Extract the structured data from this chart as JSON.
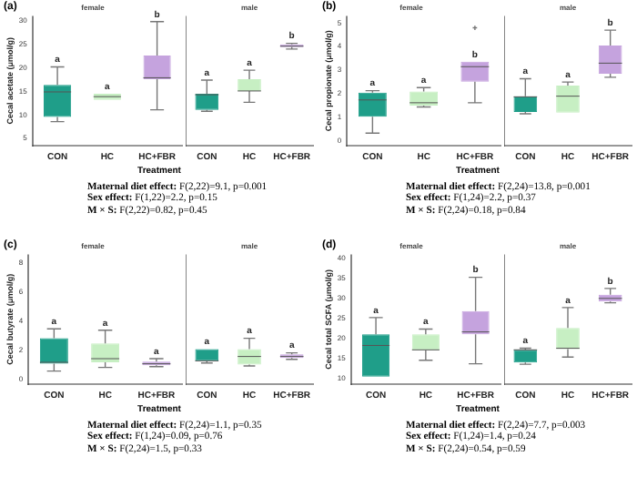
{
  "chart_data": [
    {
      "type": "box",
      "title": "female",
      "ylabel": "Cecal acetate (μmol/g)",
      "xlabel": "Treatment",
      "categories": [
        "CON",
        "HC",
        "HC+FBR"
      ],
      "colors": [
        "#1f9e89",
        "#c7efc3",
        "#c5a3de"
      ],
      "ylim": [
        3.5,
        31
      ],
      "yticks": [
        5,
        10,
        15,
        20,
        25,
        30
      ],
      "boxes": [
        {
          "low": 8.6,
          "q1": 9.6,
          "median": 14.9,
          "q3": 16.4,
          "high": 20.2
        },
        {
          "low": 13.2,
          "q1": 13.2,
          "median": 13.9,
          "q3": 14.5,
          "high": 14.5
        },
        {
          "low": 11.1,
          "q1": 17.6,
          "median": 17.9,
          "q3": 22.6,
          "high": 29.8
        }
      ],
      "annotations": [
        "(a)",
        "Maternal diet effect: F(2,22)=9.1, p=0.001",
        "Sex effect: F(1,22)=2.2, p=0.15",
        "M × S: F(2,22)=0.82, p=0.45",
        {
          "text": "a",
          "x": "CON",
          "y": 20.2
        },
        {
          "text": "a",
          "x": "HC",
          "y": 14.5
        },
        {
          "text": "b",
          "x": "HC+FBR",
          "y": 29.8
        }
      ]
    },
    {
      "type": "box",
      "title": "male",
      "categories": [
        "CON",
        "HC",
        "HC+FBR"
      ],
      "colors": [
        "#1f9e89",
        "#c7efc3",
        "#c5a3de"
      ],
      "ylim": [
        3.5,
        31
      ],
      "yticks": [
        5,
        10,
        15,
        20,
        25,
        30
      ],
      "tick_labels": "x",
      "boxes": [
        {
          "low": 10.8,
          "q1": 11.1,
          "median": 14.3,
          "q3": 14.5,
          "high": 17.4
        },
        {
          "low": 12.7,
          "q1": 15.1,
          "median": 15.1,
          "q3": 17.6,
          "high": 19.5
        },
        {
          "low": 24.0,
          "q1": 24.4,
          "median": 24.6,
          "q3": 25.0,
          "high": 25.2
        }
      ],
      "annotations": [
        {
          "text": "a",
          "x": "CON",
          "y": 17.4
        },
        {
          "text": "a",
          "x": "HC",
          "y": 19.5
        },
        {
          "text": "b",
          "x": "HC+FBR",
          "y": 25.2
        }
      ]
    },
    {
      "type": "box",
      "title": "female",
      "ylabel": "Cecal propionate (μmol/g)",
      "xlabel": "Treatment",
      "categories": [
        "CON",
        "HC",
        "HC+FBR"
      ],
      "colors": [
        "#1f9e89",
        "#c7efc3",
        "#c5a3de"
      ],
      "ylim": [
        -0.2,
        5.3
      ],
      "yticks": [
        0,
        1,
        2,
        3,
        4,
        5
      ],
      "boxes": [
        {
          "low": 0.33,
          "q1": 1.03,
          "median": 1.74,
          "q3": 2.05,
          "high": 2.13
        },
        {
          "low": 1.44,
          "q1": 1.5,
          "median": 1.62,
          "q3": 2.1,
          "high": 2.26
        },
        {
          "low": 1.62,
          "q1": 2.51,
          "median": 3.15,
          "q3": 3.36,
          "high": 3.36,
          "outliers": [
            4.8
          ]
        }
      ],
      "annotations": [
        "(b)",
        "Maternal diet effect: F(2,24)=13.8, p=0.001",
        "Sex effect: F(1,24)=2.2, p=0.37",
        "M × S: F(2,24)=0.18, p=0.84",
        {
          "text": "a",
          "x": "CON",
          "y": 2.13
        },
        {
          "text": "a",
          "x": "HC",
          "y": 2.26
        },
        {
          "text": "b",
          "x": "HC+FBR",
          "y": 3.36
        }
      ]
    },
    {
      "type": "box",
      "title": "male",
      "categories": [
        "CON",
        "HC",
        "HC+FBR"
      ],
      "colors": [
        "#1f9e89",
        "#c7efc3",
        "#c5a3de"
      ],
      "ylim": [
        -0.2,
        5.3
      ],
      "yticks": [
        0,
        1,
        2,
        3,
        4,
        5
      ],
      "tick_labels": "x",
      "boxes": [
        {
          "low": 1.15,
          "q1": 1.23,
          "median": 1.87,
          "q3": 1.9,
          "high": 2.64
        },
        {
          "low": 1.2,
          "q1": 1.2,
          "median": 1.9,
          "q3": 2.35,
          "high": 2.5
        },
        {
          "low": 2.7,
          "q1": 2.85,
          "median": 3.3,
          "q3": 4.05,
          "high": 4.7
        }
      ],
      "annotations": [
        {
          "text": "a",
          "x": "CON",
          "y": 2.64
        },
        {
          "text": "a",
          "x": "HC",
          "y": 2.5
        },
        {
          "text": "b",
          "x": "HC+FBR",
          "y": 4.7
        }
      ]
    },
    {
      "type": "box",
      "title": "female",
      "ylabel": "Cecal butyrate (μmol/g)",
      "xlabel": "Treatment",
      "categories": [
        "CON",
        "HC",
        "HC+FBR"
      ],
      "colors": [
        "#1f9e89",
        "#c7efc3",
        "#c5a3de"
      ],
      "ylim": [
        -0.3,
        8.6
      ],
      "yticks": [
        0,
        2,
        4,
        6,
        8
      ],
      "boxes": [
        {
          "low": 0.6,
          "q1": 1.1,
          "median": 1.2,
          "q3": 2.85,
          "high": 3.5
        },
        {
          "low": 0.85,
          "q1": 1.2,
          "median": 1.45,
          "q3": 2.5,
          "high": 3.4
        },
        {
          "low": 0.9,
          "q1": 1.0,
          "median": 1.1,
          "q3": 1.25,
          "high": 1.45
        }
      ],
      "annotations": [
        "(c)",
        "Maternal diet effect: F(2,24)=1.1, p=0.35",
        "Sex effect: F(1,24)=0.09, p=0.76",
        "M × S: F(2,24)=1.5, p=0.33",
        {
          "text": "a",
          "x": "CON",
          "y": 3.5
        },
        {
          "text": "a",
          "x": "HC",
          "y": 3.4
        },
        {
          "text": "a",
          "x": "HC+FBR",
          "y": 1.45
        }
      ]
    },
    {
      "type": "box",
      "title": "male",
      "categories": [
        "CON",
        "HC",
        "HC+FBR"
      ],
      "colors": [
        "#1f9e89",
        "#c7efc3",
        "#c5a3de"
      ],
      "ylim": [
        -0.3,
        8.6
      ],
      "yticks": [
        0,
        2,
        4,
        6,
        8
      ],
      "tick_labels": "x",
      "boxes": [
        {
          "low": 1.15,
          "q1": 1.3,
          "median": 1.3,
          "q3": 2.1,
          "high": 2.1
        },
        {
          "low": 0.95,
          "q1": 1.05,
          "median": 1.6,
          "q3": 2.1,
          "high": 2.85
        },
        {
          "low": 1.4,
          "q1": 1.5,
          "median": 1.6,
          "q3": 1.75,
          "high": 1.85
        }
      ],
      "annotations": [
        {
          "text": "a",
          "x": "CON",
          "y": 2.1
        },
        {
          "text": "a",
          "x": "HC",
          "y": 2.85
        },
        {
          "text": "a",
          "x": "HC+FBR",
          "y": 1.85
        }
      ]
    },
    {
      "type": "box",
      "title": "female",
      "ylabel": "Cecal total SCFA (μmol/g)",
      "xlabel": "Treatment",
      "categories": [
        "CON",
        "HC",
        "HC+FBR"
      ],
      "colors": [
        "#1f9e89",
        "#c7efc3",
        "#c5a3de"
      ],
      "ylim": [
        8.5,
        41
      ],
      "yticks": [
        10,
        15,
        20,
        25,
        30,
        35,
        40
      ],
      "boxes": [
        {
          "low": 10.4,
          "q1": 10.4,
          "median": 18.2,
          "q3": 21.0,
          "high": 25.2
        },
        {
          "low": 14.5,
          "q1": 17.0,
          "median": 17.1,
          "q3": 21.0,
          "high": 22.3
        },
        {
          "low": 13.6,
          "q1": 21.0,
          "median": 21.6,
          "q3": 26.8,
          "high": 35.3
        }
      ],
      "annotations": [
        "(d)",
        "Maternal diet effect: F(2,24)=7.7, p=0.003",
        "Sex effect: F(1,24)=1.4, p=0.24",
        "M × S: F(2,24)=0.54, p=0.59",
        {
          "text": "a",
          "x": "CON",
          "y": 25.2
        },
        {
          "text": "a",
          "x": "HC",
          "y": 22.3
        },
        {
          "text": "b",
          "x": "HC+FBR",
          "y": 35.3
        }
      ]
    },
    {
      "type": "box",
      "title": "male",
      "categories": [
        "CON",
        "HC",
        "HC+FBR"
      ],
      "colors": [
        "#1f9e89",
        "#c7efc3",
        "#c5a3de"
      ],
      "ylim": [
        8.5,
        41
      ],
      "yticks": [
        10,
        15,
        20,
        25,
        30,
        35,
        40
      ],
      "tick_labels": "x",
      "boxes": [
        {
          "low": 13.5,
          "q1": 13.9,
          "median": 17.1,
          "q3": 17.1,
          "high": 17.5
        },
        {
          "low": 15.3,
          "q1": 17.3,
          "median": 17.5,
          "q3": 22.6,
          "high": 27.7
        },
        {
          "low": 28.9,
          "q1": 29.2,
          "median": 30.0,
          "q3": 30.9,
          "high": 32.5
        }
      ],
      "annotations": [
        {
          "text": "a",
          "x": "CON",
          "y": 17.5
        },
        {
          "text": "a",
          "x": "HC",
          "y": 27.7
        },
        {
          "text": "b",
          "x": "HC+FBR",
          "y": 32.5
        }
      ]
    }
  ]
}
